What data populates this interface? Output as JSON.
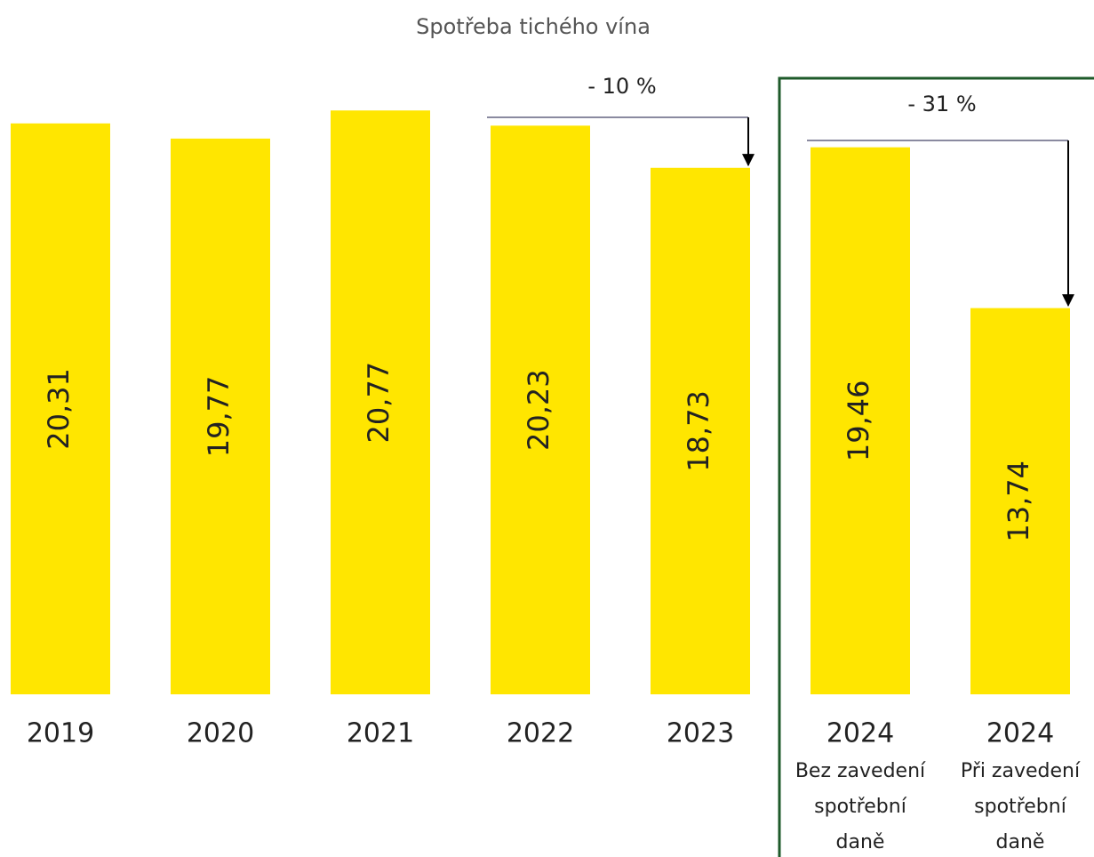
{
  "chart_data": {
    "type": "bar",
    "title": "Spotřeba tichého vína",
    "categories": [
      "2019",
      "2020",
      "2021",
      "2022",
      "2023",
      "2024",
      "2024"
    ],
    "category_notes": [
      null,
      null,
      null,
      null,
      null,
      [
        "Bez zavedení",
        "spotřební",
        "daně"
      ],
      [
        "Při zavedení",
        "spotřební",
        "daně"
      ]
    ],
    "values": [
      20.31,
      19.77,
      20.77,
      20.23,
      18.73,
      19.46,
      13.74
    ],
    "value_labels": [
      "20,31",
      "19,77",
      "20,77",
      "20,23",
      "18,73",
      "19,46",
      "13,74"
    ],
    "color": "#ffe600",
    "ylim": [
      0,
      24.7
    ],
    "annotations": [
      {
        "text": "- 10 %"
      },
      {
        "text": "- 31 %"
      }
    ]
  }
}
